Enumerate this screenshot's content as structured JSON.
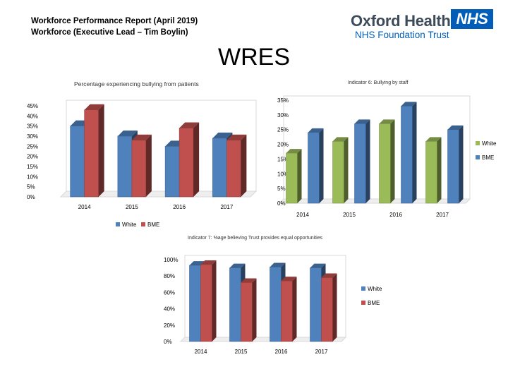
{
  "header": {
    "line1": "Workforce Performance Report (April 2019)",
    "line2": "Workforce (Executive Lead – Tim Boylin)"
  },
  "logo": {
    "name": "Oxford Health",
    "badge": "NHS",
    "sub": "NHS Foundation Trust"
  },
  "page_title": "WRES",
  "colors": {
    "white_series": "#4f81bd",
    "bme_series": "#c0504d",
    "white_ind6": "#9bbb59"
  },
  "chart_data": [
    {
      "type": "bar",
      "title": "Percentage experiencing bullying from patients",
      "categories": [
        "2014",
        "2015",
        "2016",
        "2017"
      ],
      "series": [
        {
          "name": "White",
          "values": [
            35,
            30,
            25,
            29
          ]
        },
        {
          "name": "BME",
          "values": [
            43,
            28,
            34,
            28
          ]
        }
      ],
      "yticks": [
        "0%",
        "5%",
        "10%",
        "15%",
        "20%",
        "25%",
        "30%",
        "35%",
        "40%",
        "45%"
      ],
      "ylim": [
        0,
        45
      ],
      "legend": "bottom"
    },
    {
      "type": "bar",
      "title": "Indicator 6: Bullying by staff",
      "categories": [
        "2014",
        "2015",
        "2016",
        "2017"
      ],
      "series": [
        {
          "name": "White",
          "values": [
            17,
            21,
            27,
            21
          ]
        },
        {
          "name": "BME",
          "values": [
            24,
            27,
            33,
            25
          ]
        }
      ],
      "yticks": [
        "0%",
        "5%",
        "10%",
        "15%",
        "20%",
        "25%",
        "30%",
        "35%"
      ],
      "ylim": [
        0,
        35
      ],
      "legend": "right"
    },
    {
      "type": "bar",
      "title": "Indicator 7: %age believing Trust provides equal opportunities",
      "categories": [
        "2014",
        "2015",
        "2016",
        "2017"
      ],
      "series": [
        {
          "name": "White",
          "values": [
            93,
            90,
            91,
            90
          ]
        },
        {
          "name": "BME",
          "values": [
            94,
            72,
            74,
            78
          ]
        }
      ],
      "yticks": [
        "0%",
        "20%",
        "40%",
        "60%",
        "80%",
        "100%"
      ],
      "ylim": [
        0,
        100
      ],
      "legend": "right"
    }
  ]
}
